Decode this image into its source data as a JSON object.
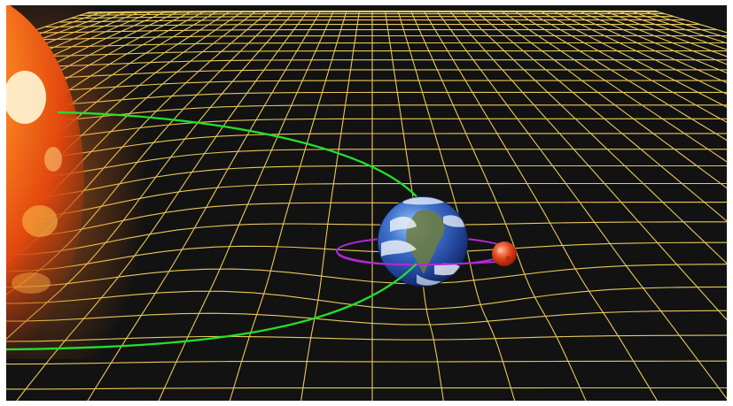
{
  "scene": {
    "background_color": "#121212",
    "frame_color": "#ffffff",
    "grid_color": "#e9c95a",
    "earth_orbit_color": "#23e02c",
    "moon_orbit_color": "#b229d6",
    "bodies": [
      {
        "name": "sun",
        "colors": [
          "#fff3c8",
          "#ff9a2e",
          "#ff5a10",
          "#d43a08"
        ]
      },
      {
        "name": "earth",
        "colors": [
          "#1d3f8f",
          "#3c6fd0",
          "#cfd9ea",
          "#6f7c3e"
        ]
      },
      {
        "name": "moon",
        "colors": [
          "#ffb08a",
          "#e0451a",
          "#9c1a08"
        ]
      }
    ]
  }
}
